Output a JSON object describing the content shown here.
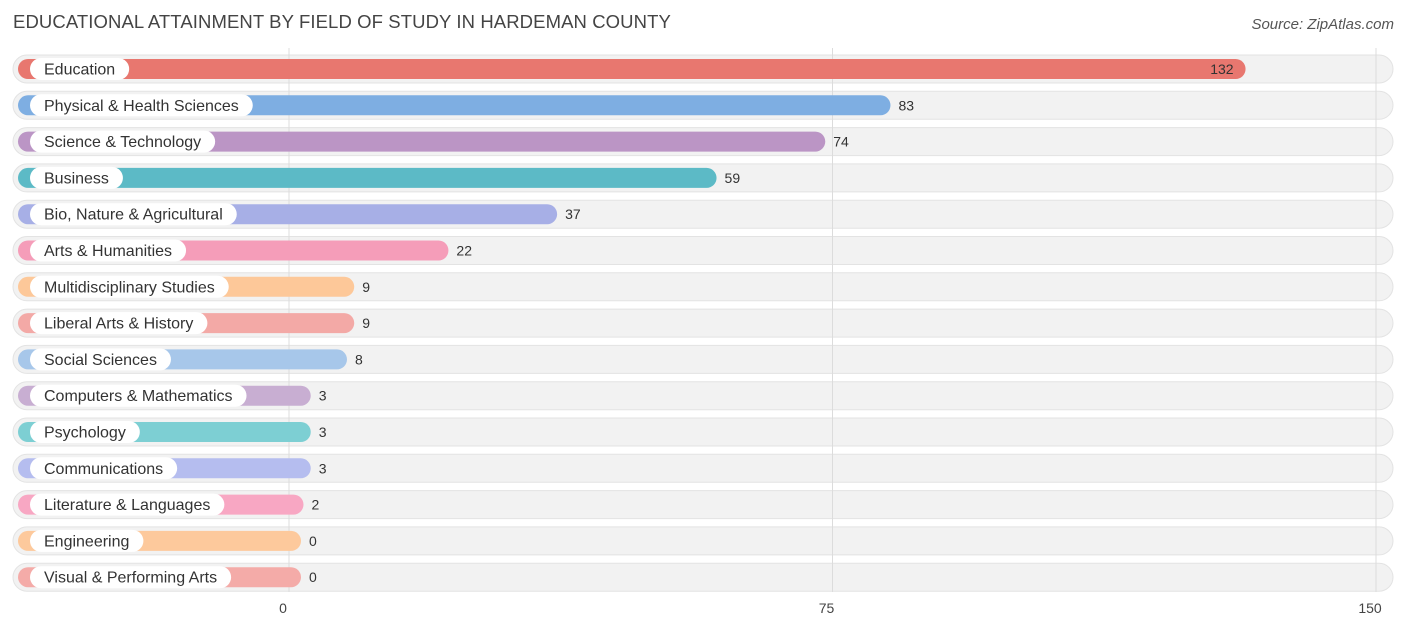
{
  "title": "EDUCATIONAL ATTAINMENT BY FIELD OF STUDY IN HARDEMAN COUNTY",
  "source": "Source: ZipAtlas.com",
  "chart_data": {
    "type": "bar",
    "orientation": "horizontal",
    "categories": [
      "Education",
      "Physical & Health Sciences",
      "Science & Technology",
      "Business",
      "Bio, Nature & Agricultural",
      "Arts & Humanities",
      "Multidisciplinary Studies",
      "Liberal Arts & History",
      "Social Sciences",
      "Computers & Mathematics",
      "Psychology",
      "Communications",
      "Literature & Languages",
      "Engineering",
      "Visual & Performing Arts"
    ],
    "values": [
      132,
      83,
      74,
      59,
      37,
      22,
      9,
      9,
      8,
      3,
      3,
      3,
      2,
      0,
      0
    ],
    "colors": [
      "#e8776f",
      "#7eaee2",
      "#bb95c5",
      "#5cbac6",
      "#a7afe6",
      "#f59db9",
      "#fdc899",
      "#f3a9a6",
      "#a7c7ea",
      "#c8aed2",
      "#7dcfd3",
      "#b5bdef",
      "#f8a7c3",
      "#fdc99c",
      "#f4aba8"
    ],
    "xlim": [
      0,
      150
    ],
    "xticks": [
      0,
      75,
      150
    ],
    "grid": true,
    "value_label_inside_first": true
  }
}
